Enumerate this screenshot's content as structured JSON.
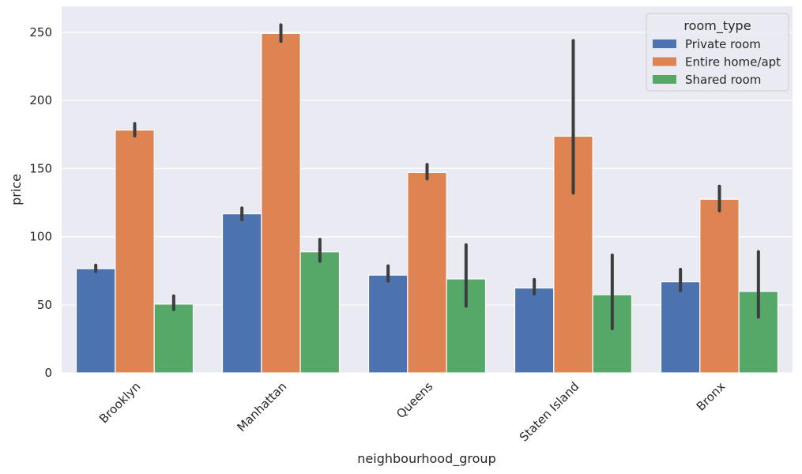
{
  "chart_data": {
    "type": "bar",
    "xlabel": "neighbourhood_group",
    "ylabel": "price",
    "categories": [
      "Brooklyn",
      "Manhattan",
      "Queens",
      "Staten Island",
      "Bronx"
    ],
    "yticks": [
      "0",
      "50",
      "100",
      "150",
      "200",
      "250"
    ],
    "ylim": [
      0,
      268
    ],
    "grid": true,
    "legend": {
      "title": "room_type",
      "placement": "top-right"
    },
    "series": [
      {
        "name": "Private room",
        "color": "#4c72b0",
        "values": [
          76.5,
          116.8,
          71.8,
          62.3,
          66.9
        ],
        "ci": [
          [
            74.5,
            79.0
          ],
          [
            112.5,
            121.0
          ],
          [
            67.5,
            78.5
          ],
          [
            58.0,
            68.5
          ],
          [
            60.5,
            76.0
          ]
        ]
      },
      {
        "name": "Entire home/apt",
        "color": "#dd8452",
        "values": [
          178.3,
          249.2,
          147.1,
          173.8,
          127.5
        ],
        "ci": [
          [
            174.0,
            183.0
          ],
          [
            243.5,
            255.5
          ],
          [
            142.5,
            153.0
          ],
          [
            132.0,
            244.0
          ],
          [
            119.0,
            137.0
          ]
        ]
      },
      {
        "name": "Shared room",
        "color": "#55a868",
        "values": [
          50.5,
          88.9,
          69.0,
          57.4,
          59.8
        ],
        "ci": [
          [
            46.5,
            56.5
          ],
          [
            82.0,
            98.0
          ],
          [
            49.0,
            94.0
          ],
          [
            32.5,
            86.5
          ],
          [
            41.0,
            89.0
          ]
        ]
      }
    ]
  }
}
